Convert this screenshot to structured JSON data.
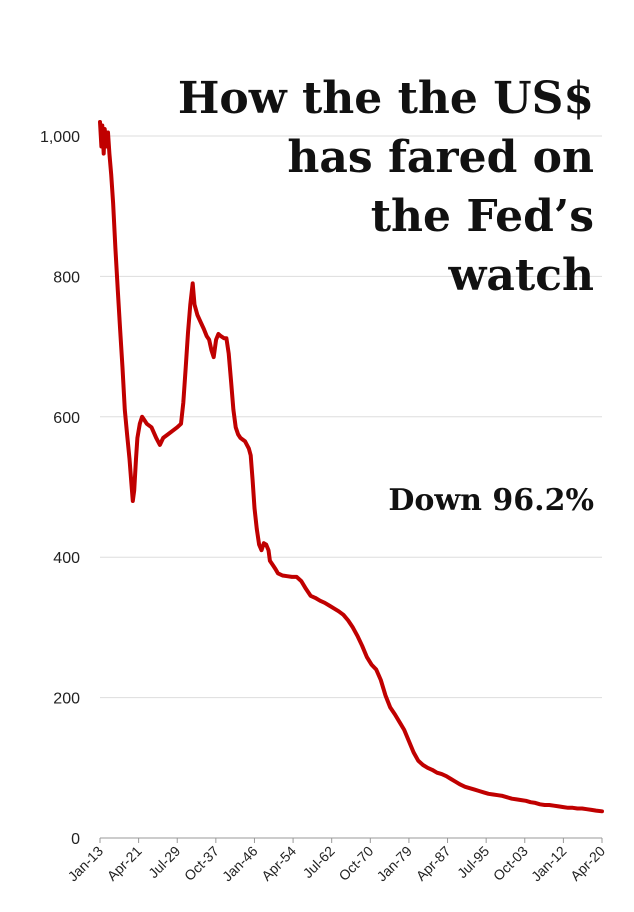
{
  "chart_data": {
    "type": "line",
    "title_lines": [
      "How the the US$",
      "has fared on",
      "the Fed’s",
      "watch"
    ],
    "annotation": "Down 96.2%",
    "xlabel": "",
    "ylabel": "",
    "ylim": [
      0,
      1000
    ],
    "yticks": [
      0,
      200,
      400,
      600,
      800,
      1000
    ],
    "ytick_labels": [
      "0",
      "200",
      "400",
      "600",
      "800",
      "1,000"
    ],
    "xlim": [
      1913.0,
      2020.25
    ],
    "xticks": [
      {
        "label": "Jan-13",
        "year": 1913.0
      },
      {
        "label": "Apr-21",
        "year": 1921.25
      },
      {
        "label": "Jul-29",
        "year": 1929.5
      },
      {
        "label": "Oct-37",
        "year": 1937.75
      },
      {
        "label": "Jan-46",
        "year": 1946.0
      },
      {
        "label": "Apr-54",
        "year": 1954.25
      },
      {
        "label": "Jul-62",
        "year": 1962.5
      },
      {
        "label": "Oct-70",
        "year": 1970.75
      },
      {
        "label": "Jan-79",
        "year": 1979.0
      },
      {
        "label": "Apr-87",
        "year": 1987.25
      },
      {
        "label": "Jul-95",
        "year": 1995.5
      },
      {
        "label": "Oct-03",
        "year": 2003.75
      },
      {
        "label": "Jan-12",
        "year": 2012.0
      },
      {
        "label": "Apr-20",
        "year": 2020.25
      }
    ],
    "grid": true,
    "line_color": "#c00000",
    "series": [
      {
        "points": [
          [
            1913.0,
            1020
          ],
          [
            1913.3,
            985
          ],
          [
            1913.5,
            1015
          ],
          [
            1913.8,
            975
          ],
          [
            1914.0,
            1010
          ],
          [
            1914.4,
            985
          ],
          [
            1914.7,
            1005
          ],
          [
            1915.0,
            975
          ],
          [
            1915.4,
            945
          ],
          [
            1915.8,
            905
          ],
          [
            1916.3,
            840
          ],
          [
            1916.8,
            780
          ],
          [
            1917.3,
            725
          ],
          [
            1917.8,
            670
          ],
          [
            1918.3,
            610
          ],
          [
            1918.8,
            575
          ],
          [
            1919.3,
            540
          ],
          [
            1919.7,
            505
          ],
          [
            1920.0,
            480
          ],
          [
            1920.3,
            495
          ],
          [
            1920.7,
            540
          ],
          [
            1921.0,
            570
          ],
          [
            1921.5,
            590
          ],
          [
            1922.0,
            600
          ],
          [
            1922.5,
            595
          ],
          [
            1923.0,
            590
          ],
          [
            1924.0,
            585
          ],
          [
            1925.0,
            570
          ],
          [
            1925.8,
            560
          ],
          [
            1926.5,
            570
          ],
          [
            1927.5,
            575
          ],
          [
            1928.5,
            580
          ],
          [
            1929.5,
            585
          ],
          [
            1930.3,
            590
          ],
          [
            1930.8,
            620
          ],
          [
            1931.3,
            670
          ],
          [
            1931.8,
            720
          ],
          [
            1932.3,
            760
          ],
          [
            1932.8,
            790
          ],
          [
            1933.2,
            760
          ],
          [
            1933.8,
            745
          ],
          [
            1934.5,
            735
          ],
          [
            1935.2,
            725
          ],
          [
            1935.8,
            715
          ],
          [
            1936.3,
            710
          ],
          [
            1936.8,
            695
          ],
          [
            1937.3,
            685
          ],
          [
            1937.8,
            710
          ],
          [
            1938.3,
            718
          ],
          [
            1938.8,
            715
          ],
          [
            1939.5,
            712
          ],
          [
            1940.0,
            712
          ],
          [
            1940.5,
            690
          ],
          [
            1941.0,
            650
          ],
          [
            1941.5,
            610
          ],
          [
            1942.0,
            585
          ],
          [
            1942.5,
            575
          ],
          [
            1943.0,
            570
          ],
          [
            1944.0,
            565
          ],
          [
            1944.8,
            555
          ],
          [
            1945.2,
            545
          ],
          [
            1945.6,
            510
          ],
          [
            1946.0,
            470
          ],
          [
            1946.5,
            440
          ],
          [
            1947.0,
            418
          ],
          [
            1947.5,
            410
          ],
          [
            1948.0,
            420
          ],
          [
            1948.5,
            418
          ],
          [
            1949.0,
            410
          ],
          [
            1949.3,
            395
          ],
          [
            1950.0,
            388
          ],
          [
            1950.5,
            383
          ],
          [
            1951.0,
            377
          ],
          [
            1952.0,
            374
          ],
          [
            1953.0,
            373
          ],
          [
            1954.0,
            372
          ],
          [
            1955.0,
            372
          ],
          [
            1956.0,
            366
          ],
          [
            1957.0,
            355
          ],
          [
            1958.0,
            345
          ],
          [
            1959.0,
            342
          ],
          [
            1960.0,
            338
          ],
          [
            1961.0,
            335
          ],
          [
            1962.0,
            331
          ],
          [
            1963.0,
            327
          ],
          [
            1964.0,
            323
          ],
          [
            1965.0,
            318
          ],
          [
            1966.0,
            310
          ],
          [
            1967.0,
            300
          ],
          [
            1968.0,
            288
          ],
          [
            1969.0,
            274
          ],
          [
            1970.0,
            258
          ],
          [
            1971.0,
            247
          ],
          [
            1972.0,
            240
          ],
          [
            1973.0,
            225
          ],
          [
            1974.0,
            203
          ],
          [
            1975.0,
            186
          ],
          [
            1976.0,
            176
          ],
          [
            1977.0,
            165
          ],
          [
            1978.0,
            154
          ],
          [
            1979.0,
            138
          ],
          [
            1980.0,
            122
          ],
          [
            1981.0,
            110
          ],
          [
            1982.0,
            104
          ],
          [
            1983.0,
            100
          ],
          [
            1984.0,
            97
          ],
          [
            1985.0,
            93
          ],
          [
            1986.0,
            91
          ],
          [
            1987.0,
            88
          ],
          [
            1988.0,
            84
          ],
          [
            1989.0,
            80
          ],
          [
            1990.0,
            76
          ],
          [
            1991.0,
            73
          ],
          [
            1992.0,
            71
          ],
          [
            1993.0,
            69
          ],
          [
            1994.0,
            67
          ],
          [
            1995.0,
            65
          ],
          [
            1996.0,
            63
          ],
          [
            1997.0,
            62
          ],
          [
            1998.0,
            61
          ],
          [
            1999.0,
            60
          ],
          [
            2000.0,
            58
          ],
          [
            2001.0,
            56
          ],
          [
            2002.0,
            55
          ],
          [
            2003.0,
            54
          ],
          [
            2004.0,
            53
          ],
          [
            2005.0,
            51
          ],
          [
            2006.0,
            50
          ],
          [
            2007.0,
            48
          ],
          [
            2008.0,
            47
          ],
          [
            2009.0,
            47
          ],
          [
            2010.0,
            46
          ],
          [
            2011.0,
            45
          ],
          [
            2012.0,
            44
          ],
          [
            2013.0,
            43
          ],
          [
            2014.0,
            43
          ],
          [
            2015.0,
            42
          ],
          [
            2016.0,
            42
          ],
          [
            2017.0,
            41
          ],
          [
            2018.0,
            40
          ],
          [
            2019.0,
            39
          ],
          [
            2020.25,
            38
          ]
        ]
      }
    ]
  }
}
